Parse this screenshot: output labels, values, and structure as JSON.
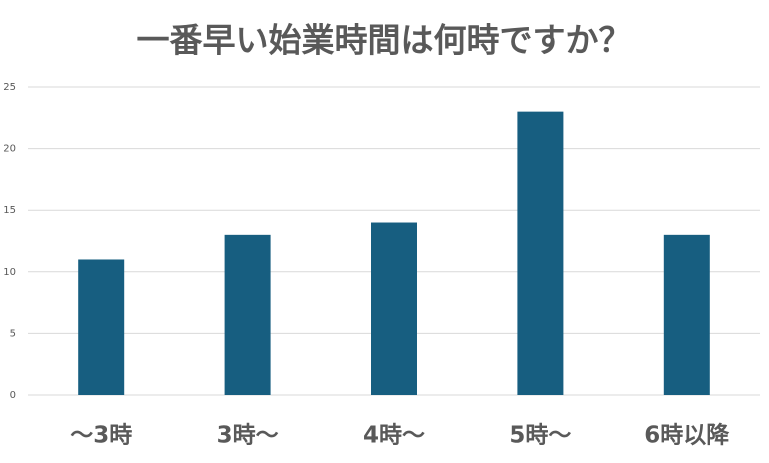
{
  "chart_data": {
    "type": "bar",
    "title": "一番早い始業時間は何時ですか？",
    "categories": [
      "～3時",
      "3時～",
      "4時～",
      "5時～",
      "6時以降"
    ],
    "values": [
      11,
      13,
      14,
      23,
      13
    ],
    "color": "#175e80",
    "ylim": [
      0,
      25
    ],
    "yticks": [
      0,
      5,
      10,
      15,
      20,
      25
    ],
    "grid": true
  }
}
